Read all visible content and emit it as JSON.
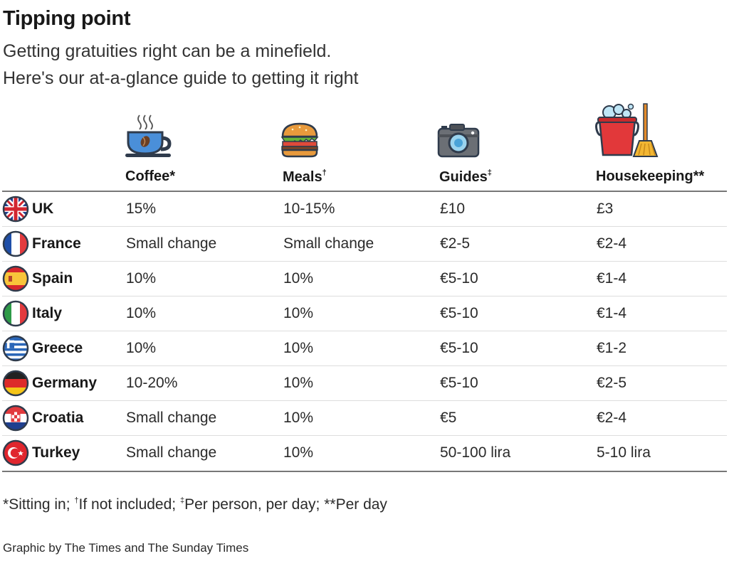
{
  "chart_data": {
    "type": "table",
    "title": "Tipping point",
    "subtitle_line1": "Getting gratuities right can be a minefield.",
    "subtitle_line2": "Here's our at-a-glance guide to getting it right",
    "columns": [
      {
        "label": "Coffee",
        "mark": "*",
        "icon": "coffee-cup-icon"
      },
      {
        "label": "Meals",
        "mark": "†",
        "icon": "burger-icon"
      },
      {
        "label": "Guides",
        "mark": "‡",
        "icon": "camera-icon"
      },
      {
        "label": "Housekeeping",
        "mark": "**",
        "icon": "bucket-broom-icon"
      }
    ],
    "rows": [
      {
        "country": "UK",
        "flag": "uk-flag",
        "values": [
          "15%",
          "10-15%",
          "£10",
          "£3"
        ]
      },
      {
        "country": "France",
        "flag": "france-flag",
        "values": [
          "Small change",
          "Small change",
          "€2-5",
          "€2-4"
        ]
      },
      {
        "country": "Spain",
        "flag": "spain-flag",
        "values": [
          "10%",
          "10%",
          "€5-10",
          "€1-4"
        ]
      },
      {
        "country": "Italy",
        "flag": "italy-flag",
        "values": [
          "10%",
          "10%",
          "€5-10",
          "€1-4"
        ]
      },
      {
        "country": "Greece",
        "flag": "greece-flag",
        "values": [
          "10%",
          "10%",
          "€5-10",
          "€1-2"
        ]
      },
      {
        "country": "Germany",
        "flag": "germany-flag",
        "values": [
          "10-20%",
          "10%",
          "€5-10",
          "€2-5"
        ]
      },
      {
        "country": "Croatia",
        "flag": "croatia-flag",
        "values": [
          "Small change",
          "10%",
          "€5",
          "€2-4"
        ]
      },
      {
        "country": "Turkey",
        "flag": "turkey-flag",
        "values": [
          "Small change",
          "10%",
          "50-100 lira",
          "5-10 lira"
        ]
      }
    ],
    "footnotes": [
      {
        "mark": "*",
        "text": "Sitting in; "
      },
      {
        "mark": "†",
        "text": "If not included; "
      },
      {
        "mark": "‡",
        "text": "Per person, per day; "
      },
      {
        "mark": "**",
        "text": "Per day"
      }
    ],
    "source": "Graphic by The Times and The Sunday Times"
  }
}
